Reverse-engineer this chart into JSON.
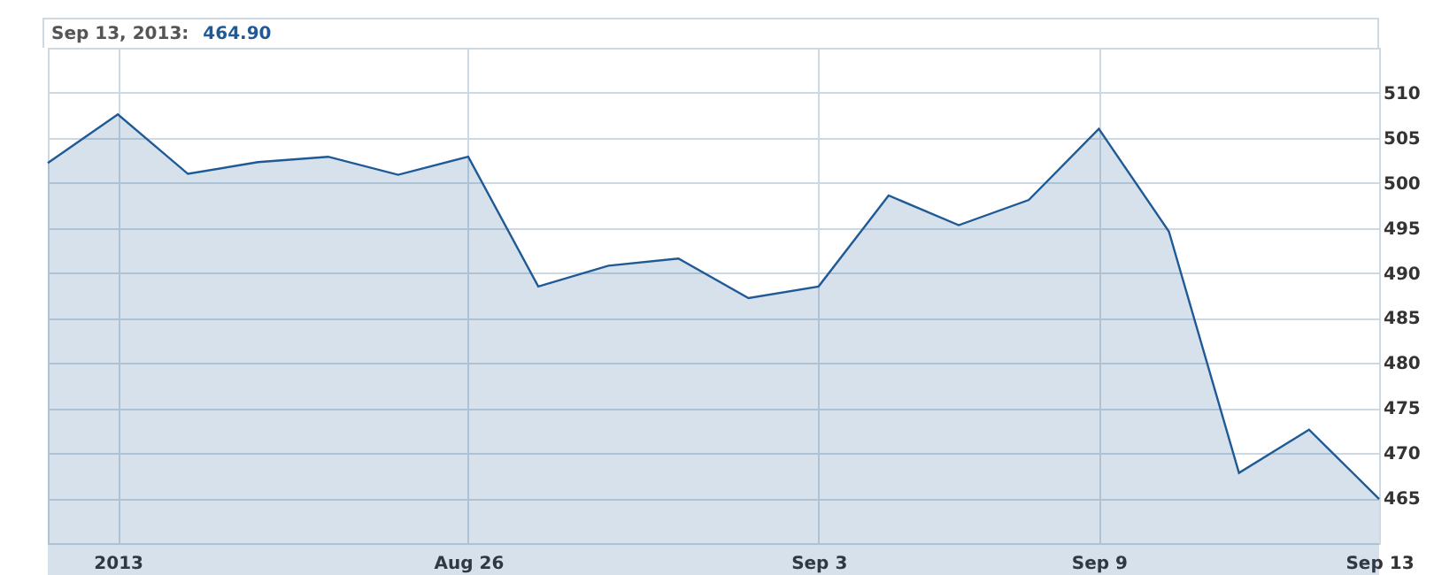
{
  "chart_data": {
    "type": "area",
    "annotations": [
      "Sep 13, 2013:",
      "464.90"
    ],
    "categories": [
      null,
      "2013",
      null,
      null,
      null,
      null,
      "Aug 26",
      null,
      null,
      null,
      null,
      "Sep 3",
      null,
      null,
      null,
      "Sep 9",
      null,
      null,
      null,
      "Sep 13"
    ],
    "series": [
      {
        "color": "#1f5a96",
        "values": [
          502.2,
          507.6,
          501.0,
          502.3,
          502.9,
          500.9,
          502.9,
          488.5,
          490.8,
          491.6,
          487.2,
          488.5,
          498.6,
          495.3,
          498.1,
          506.0,
          494.6,
          467.8,
          472.6,
          464.9
        ]
      }
    ],
    "ylim": [
      460,
      515
    ],
    "yticks": [
      465,
      470,
      475,
      480,
      485,
      490,
      495,
      500,
      505,
      510
    ],
    "grid": true,
    "marker": "none"
  }
}
